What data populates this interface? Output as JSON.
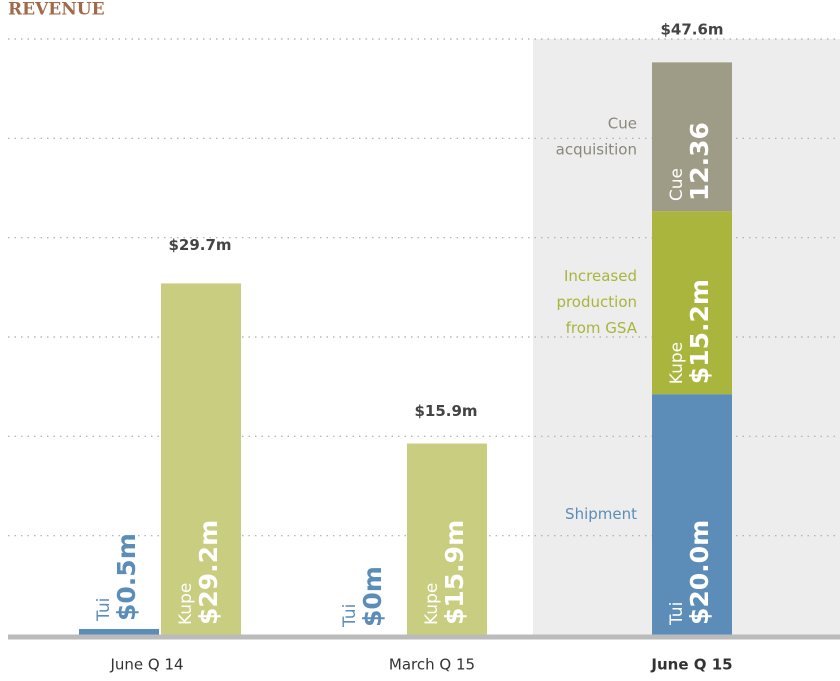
{
  "chart_data": {
    "type": "bar",
    "title": "REVENUE",
    "categories": [
      "June Q 14",
      "March Q 15",
      "June Q 15"
    ],
    "highlight": "June Q 15",
    "series": [
      {
        "name": "Tui",
        "color": "#5b8db8",
        "highlight_color": "#5b8db8",
        "values": [
          0.5,
          0,
          20.0
        ],
        "value_labels": [
          "$0.5m",
          "$0m",
          "$20.0m"
        ],
        "note": [
          "Shipment"
        ]
      },
      {
        "name": "Kupe",
        "color": "#c8cd80",
        "highlight_color": "#a9b53c",
        "values": [
          29.2,
          15.9,
          15.2
        ],
        "value_labels": [
          "$29.2m",
          "$15.9m",
          "$15.2m"
        ],
        "note": [
          "Increased",
          "production",
          "from GSA"
        ]
      },
      {
        "name": "Cue",
        "color": "#9e9c86",
        "highlight_color": "#9e9c86",
        "values": [
          null,
          null,
          12.36
        ],
        "value_labels": [
          null,
          null,
          "12.36"
        ],
        "note": [
          "Cue",
          "acquisition"
        ]
      }
    ],
    "totals": {
      "values": [
        29.7,
        15.9,
        47.6
      ],
      "labels": [
        "$29.7m",
        "$15.9m",
        "$47.6m"
      ]
    },
    "ylim": [
      0,
      49.5
    ],
    "yticks": [
      8.25,
      16.5,
      24.75,
      33,
      41.25,
      49.5
    ],
    "grid": true
  }
}
